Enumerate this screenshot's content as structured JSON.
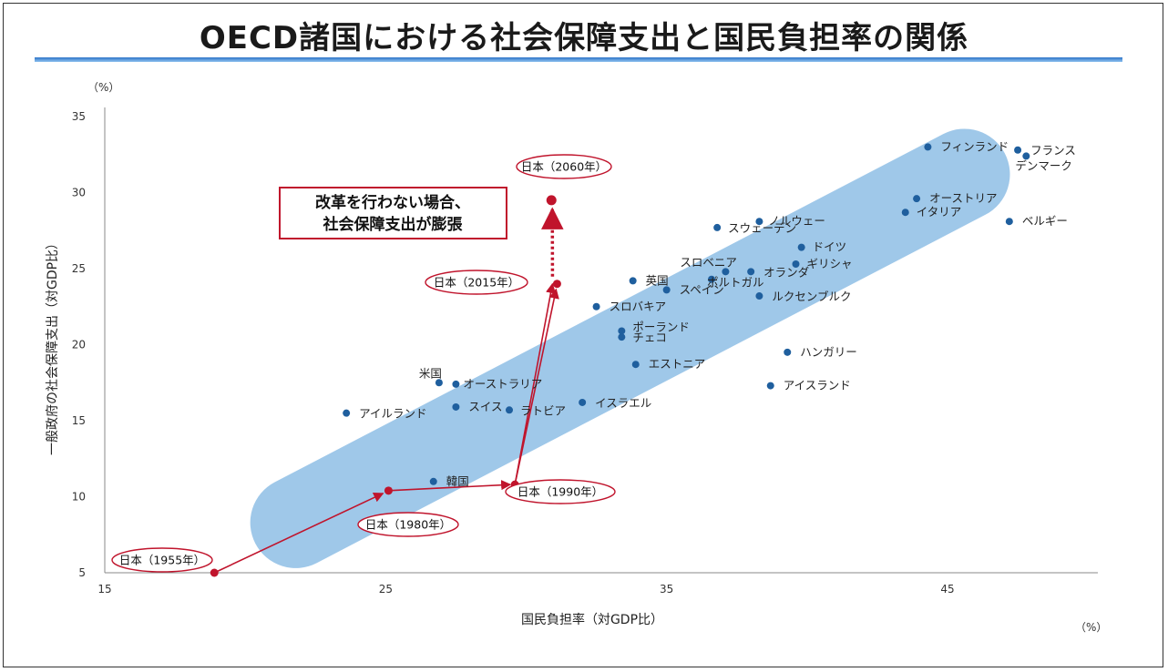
{
  "title": "OECD諸国における社会保障支出と国民負担率の関係",
  "chart_data": {
    "type": "scatter",
    "title": "OECD諸国における社会保障支出と国民負担率の関係",
    "xlabel": "国民負担率（対GDP比）",
    "ylabel": "一般政府の社会保障支出（対GDP比）",
    "x_unit": "（%）",
    "y_unit": "（%）",
    "xlim": [
      15,
      50
    ],
    "ylim": [
      5,
      35
    ],
    "x_ticks": [
      15,
      25,
      35,
      45
    ],
    "y_ticks": [
      5,
      10,
      15,
      20,
      25,
      30,
      35
    ],
    "grid": false,
    "countries": [
      {
        "name": "フィンランド",
        "x": 44.3,
        "y": 33.0
      },
      {
        "name": "フランス",
        "x": 47.5,
        "y": 32.8
      },
      {
        "name": "デンマーク",
        "x": 47.8,
        "y": 32.4
      },
      {
        "name": "オーストリア",
        "x": 43.9,
        "y": 29.6
      },
      {
        "name": "イタリア",
        "x": 43.5,
        "y": 28.7
      },
      {
        "name": "ベルギー",
        "x": 47.2,
        "y": 28.1
      },
      {
        "name": "ノルウェー",
        "x": 38.3,
        "y": 28.1
      },
      {
        "name": "スウェーデン",
        "x": 36.8,
        "y": 27.7
      },
      {
        "name": "ドイツ",
        "x": 39.8,
        "y": 26.4
      },
      {
        "name": "ギリシャ",
        "x": 39.6,
        "y": 25.3
      },
      {
        "name": "スロベニア",
        "x": 37.1,
        "y": 24.8
      },
      {
        "name": "オランダ",
        "x": 38.0,
        "y": 24.8
      },
      {
        "name": "ポルトガル",
        "x": 36.6,
        "y": 24.3
      },
      {
        "name": "英国",
        "x": 33.8,
        "y": 24.2
      },
      {
        "name": "スペイン",
        "x": 35.0,
        "y": 23.6
      },
      {
        "name": "ルクセンブルク",
        "x": 38.3,
        "y": 23.2
      },
      {
        "name": "スロバキア",
        "x": 32.5,
        "y": 22.5
      },
      {
        "name": "ポーランド",
        "x": 33.4,
        "y": 20.9
      },
      {
        "name": "チェコ",
        "x": 33.4,
        "y": 20.5
      },
      {
        "name": "ハンガリー",
        "x": 39.3,
        "y": 19.5
      },
      {
        "name": "エストニア",
        "x": 33.9,
        "y": 18.7
      },
      {
        "name": "米国",
        "x": 26.9,
        "y": 17.5
      },
      {
        "name": "オーストラリア",
        "x": 27.5,
        "y": 17.4
      },
      {
        "name": "アイスランド",
        "x": 38.7,
        "y": 17.3
      },
      {
        "name": "イスラエル",
        "x": 32.0,
        "y": 16.2
      },
      {
        "name": "スイス",
        "x": 27.5,
        "y": 15.9
      },
      {
        "name": "ラトビア",
        "x": 29.4,
        "y": 15.7
      },
      {
        "name": "アイルランド",
        "x": 23.6,
        "y": 15.5
      },
      {
        "name": "韓国",
        "x": 26.7,
        "y": 11.0
      }
    ],
    "japan_path": [
      {
        "name": "日本（1955年）",
        "x": 18.9,
        "y": 5.0
      },
      {
        "name": "日本（1980年）",
        "x": 25.1,
        "y": 10.4
      },
      {
        "name": "日本（1990年）",
        "x": 29.6,
        "y": 10.8
      },
      {
        "name": "日本（2015年）",
        "x": 31.1,
        "y": 24.0
      },
      {
        "name": "日本（2060年）",
        "x": 30.9,
        "y": 29.5
      }
    ],
    "annotation": "改革を行わない場合、社会保障支出が膨張",
    "colors": {
      "country_point": "#1f5f9e",
      "japan_path": "#c0142c",
      "band": "#8fbfe6"
    }
  }
}
